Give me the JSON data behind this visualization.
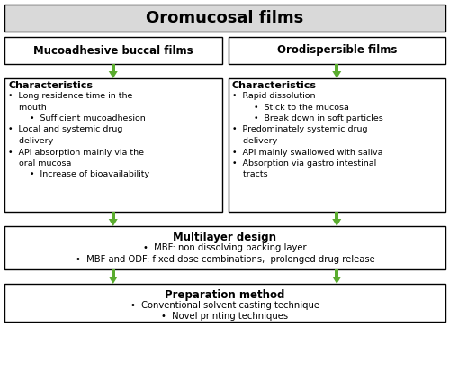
{
  "title": "Oromucosal films",
  "title_bg": "#d9d9d9",
  "arrow_color": "#5aac2e",
  "mbf_title": "Mucoadhesive buccal films",
  "odf_title": "Orodispersible films",
  "mbf_char_title": "Characteristics",
  "mbf_text": "•  Long residence time in the\n    mouth\n        •  Sufficient mucoadhesion\n•  Local and systemic drug\n    delivery\n•  API absorption mainly via the\n    oral mucosa\n        •  Increase of bioavailability",
  "odf_char_title": "Characteristics",
  "odf_text": "•  Rapid dissolution\n        •  Stick to the mucosa\n        •  Break down in soft particles\n•  Predominately systemic drug\n    delivery\n•  API mainly swallowed with saliva\n•  Absorption via gastro intestinal\n    tracts",
  "multilayer_title": "Multilayer design",
  "multilayer_b1": "•  MBF: non dissolving backing layer",
  "multilayer_b2": "•  MBF and ODF: fixed dose combinations,  prolonged drug release",
  "prep_title": "Preparation method",
  "prep_b1": "•  Conventional solvent casting technique",
  "prep_b2": "•  Novel printing techniques"
}
